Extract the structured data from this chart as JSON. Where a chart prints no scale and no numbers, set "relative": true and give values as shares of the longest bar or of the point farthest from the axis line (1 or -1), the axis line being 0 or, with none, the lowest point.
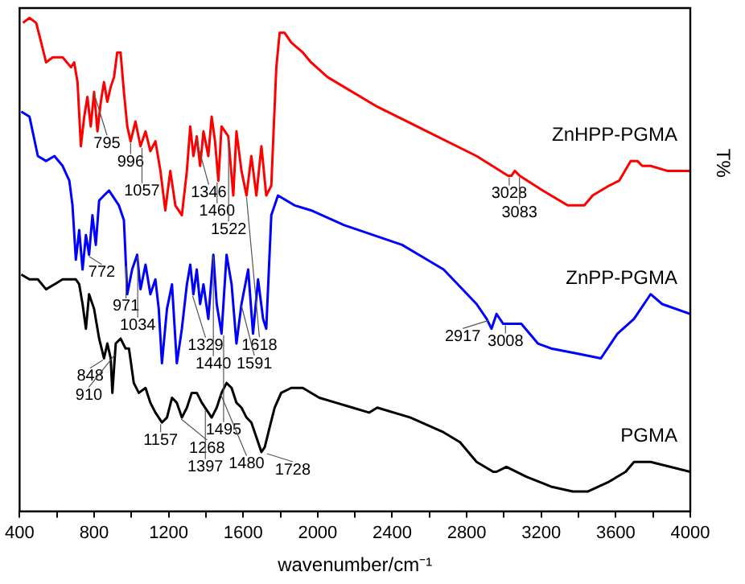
{
  "chart_data": {
    "type": "line",
    "relative": true,
    "xlabel": "wavenumber/cm⁻¹",
    "ylabel": "T%",
    "legend": false,
    "grid": false,
    "xlim": [
      400,
      4000
    ],
    "xticks": [
      400,
      {
        "value": 600,
        "label": null
      },
      800,
      {
        "value": 1000,
        "label": null
      },
      1200,
      {
        "value": 1400,
        "label": null
      },
      1600,
      {
        "value": 1800,
        "label": null
      },
      2000,
      {
        "value": 2200,
        "label": null
      },
      2400,
      {
        "value": 2600,
        "label": null
      },
      2800,
      {
        "value": 3000,
        "label": null
      },
      3200,
      {
        "value": 3400,
        "label": null
      },
      3600,
      {
        "value": 3800,
        "label": null
      },
      4000
    ],
    "series": [
      {
        "name": "ZnHPP-PGMA",
        "color": "#ff0000",
        "x": [
          418,
          453,
          489,
          516,
          542,
          578,
          631,
          676,
          693,
          711,
          729,
          747,
          764,
          782,
          800,
          818,
          836,
          853,
          871,
          889,
          907,
          924,
          942,
          960,
          978,
          996,
          1022,
          1049,
          1076,
          1102,
          1129,
          1156,
          1182,
          1209,
          1236,
          1271,
          1298,
          1316,
          1333,
          1351,
          1369,
          1387,
          1413,
          1431,
          1449,
          1467,
          1484,
          1520,
          1547,
          1564,
          1591,
          1618,
          1644,
          1671,
          1698,
          1724,
          1751,
          1778,
          1796,
          1822,
          1858,
          1920,
          1964,
          2053,
          2320,
          2587,
          2853,
          3022,
          3040,
          3058,
          3084,
          3209,
          3342,
          3431,
          3476,
          3564,
          3618,
          3680,
          3716,
          3742,
          3787,
          3876,
          4000
        ],
        "values": [
          0.99,
          1.0,
          0.99,
          0.95,
          0.91,
          0.92,
          0.92,
          0.9,
          0.91,
          0.87,
          0.74,
          0.8,
          0.84,
          0.78,
          0.85,
          0.77,
          0.83,
          0.87,
          0.83,
          0.86,
          0.88,
          0.93,
          0.93,
          0.85,
          0.78,
          0.75,
          0.79,
          0.74,
          0.77,
          0.73,
          0.75,
          0.69,
          0.61,
          0.69,
          0.62,
          0.6,
          0.69,
          0.78,
          0.72,
          0.76,
          0.7,
          0.77,
          0.72,
          0.8,
          0.75,
          0.67,
          0.78,
          0.76,
          0.64,
          0.77,
          0.69,
          0.64,
          0.72,
          0.64,
          0.74,
          0.64,
          0.66,
          0.9,
          0.97,
          0.97,
          0.95,
          0.93,
          0.91,
          0.88,
          0.82,
          0.77,
          0.72,
          0.68,
          0.68,
          0.69,
          0.68,
          0.65,
          0.62,
          0.62,
          0.64,
          0.66,
          0.67,
          0.71,
          0.71,
          0.7,
          0.7,
          0.69,
          0.69
        ]
      },
      {
        "name": "ZnPP-PGMA",
        "color": "#0000ff",
        "x": [
          409,
          453,
          498,
          542,
          587,
          631,
          667,
          684,
          702,
          720,
          738,
          756,
          773,
          791,
          809,
          827,
          853,
          880,
          898,
          933,
          960,
          978,
          1004,
          1031,
          1049,
          1076,
          1102,
          1129,
          1147,
          1164,
          1191,
          1218,
          1244,
          1271,
          1298,
          1316,
          1333,
          1351,
          1369,
          1387,
          1413,
          1440,
          1458,
          1484,
          1511,
          1538,
          1564,
          1591,
          1627,
          1653,
          1680,
          1707,
          1724,
          1751,
          1787,
          1876,
          1964,
          2142,
          2453,
          2676,
          2853,
          2907,
          2933,
          2960,
          2996,
          3093,
          3182,
          3253,
          3387,
          3520,
          3609,
          3698,
          3787,
          3849,
          4000
        ],
        "values": [
          0.81,
          0.8,
          0.72,
          0.71,
          0.72,
          0.7,
          0.67,
          0.62,
          0.51,
          0.57,
          0.49,
          0.56,
          0.52,
          0.6,
          0.54,
          0.63,
          0.64,
          0.65,
          0.64,
          0.62,
          0.59,
          0.44,
          0.49,
          0.52,
          0.45,
          0.5,
          0.44,
          0.47,
          0.41,
          0.3,
          0.41,
          0.46,
          0.3,
          0.37,
          0.46,
          0.5,
          0.44,
          0.49,
          0.42,
          0.46,
          0.39,
          0.52,
          0.42,
          0.36,
          0.52,
          0.46,
          0.34,
          0.42,
          0.49,
          0.36,
          0.47,
          0.39,
          0.37,
          0.6,
          0.64,
          0.62,
          0.61,
          0.58,
          0.54,
          0.49,
          0.42,
          0.39,
          0.37,
          0.4,
          0.38,
          0.38,
          0.34,
          0.33,
          0.32,
          0.31,
          0.36,
          0.39,
          0.44,
          0.42,
          0.4
        ]
      },
      {
        "name": "PGMA",
        "color": "#000000",
        "x": [
          409,
          453,
          498,
          542,
          587,
          631,
          676,
          702,
          720,
          738,
          756,
          773,
          800,
          827,
          853,
          871,
          889,
          898,
          916,
          942,
          969,
          987,
          1013,
          1040,
          1076,
          1102,
          1129,
          1164,
          1191,
          1218,
          1244,
          1271,
          1298,
          1324,
          1351,
          1378,
          1396,
          1431,
          1458,
          1484,
          1511,
          1538,
          1564,
          1591,
          1618,
          1644,
          1671,
          1698,
          1716,
          1742,
          1769,
          1804,
          1858,
          1920,
          2009,
          2098,
          2187,
          2276,
          2320,
          2498,
          2676,
          2764,
          2853,
          2942,
          2960,
          3013,
          3120,
          3253,
          3369,
          3449,
          3564,
          3653,
          3698,
          3787,
          4000
        ],
        "values": [
          0.48,
          0.47,
          0.47,
          0.45,
          0.46,
          0.47,
          0.47,
          0.47,
          0.46,
          0.42,
          0.37,
          0.44,
          0.41,
          0.35,
          0.31,
          0.34,
          0.31,
          0.24,
          0.34,
          0.35,
          0.33,
          0.33,
          0.26,
          0.24,
          0.25,
          0.22,
          0.2,
          0.18,
          0.19,
          0.23,
          0.22,
          0.19,
          0.21,
          0.24,
          0.24,
          0.22,
          0.21,
          0.19,
          0.21,
          0.24,
          0.26,
          0.25,
          0.22,
          0.21,
          0.19,
          0.18,
          0.15,
          0.12,
          0.13,
          0.17,
          0.21,
          0.24,
          0.25,
          0.25,
          0.23,
          0.22,
          0.21,
          0.2,
          0.21,
          0.19,
          0.16,
          0.14,
          0.1,
          0.08,
          0.08,
          0.09,
          0.07,
          0.05,
          0.04,
          0.04,
          0.06,
          0.08,
          0.1,
          0.1,
          0.08
        ]
      }
    ],
    "annotations": [
      {
        "text": "795",
        "x": 800,
        "y": 0.85
      },
      {
        "text": "996",
        "x": 996,
        "y": 0.75
      },
      {
        "text": "1057",
        "x": 1057,
        "y": 0.74
      },
      {
        "text": "1346",
        "x": 1346,
        "y": 0.76
      },
      {
        "text": "1460",
        "x": 1460,
        "y": 0.67
      },
      {
        "text": "1522",
        "x": 1522,
        "y": 0.76
      },
      {
        "text": "1618",
        "x": 1618,
        "y": 0.64
      },
      {
        "text": "3028",
        "x": 3028,
        "y": 0.68
      },
      {
        "text": "3083",
        "x": 3083,
        "y": 0.68
      },
      {
        "text": "772",
        "x": 772,
        "y": 0.52
      },
      {
        "text": "971",
        "x": 971,
        "y": 0.5
      },
      {
        "text": "1034",
        "x": 1034,
        "y": 0.52
      },
      {
        "text": "1329",
        "x": 1329,
        "y": 0.44
      },
      {
        "text": "1440",
        "x": 1440,
        "y": 0.52
      },
      {
        "text": "1495",
        "x": 1495,
        "y": 0.36
      },
      {
        "text": "1591",
        "x": 1591,
        "y": 0.42
      },
      {
        "text": "2917",
        "x": 2917,
        "y": 0.39
      },
      {
        "text": "3008",
        "x": 3008,
        "y": 0.38
      },
      {
        "text": "848",
        "x": 848,
        "y": 0.31
      },
      {
        "text": "910",
        "x": 910,
        "y": 0.32
      },
      {
        "text": "1157",
        "x": 1157,
        "y": 0.18
      },
      {
        "text": "1268",
        "x": 1268,
        "y": 0.19
      },
      {
        "text": "1397",
        "x": 1397,
        "y": 0.21
      },
      {
        "text": "1480",
        "x": 1480,
        "y": 0.24
      },
      {
        "text": "1728",
        "x": 1728,
        "y": 0.12
      }
    ]
  }
}
